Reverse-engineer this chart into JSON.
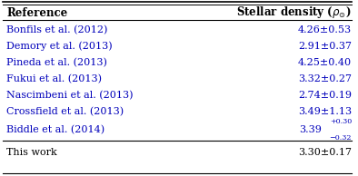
{
  "col1_header": "Reference",
  "col2_header": "Stellar density ($\\rho_{\\odot}$)",
  "rows": [
    {
      "ref": "Bonfils et al. (2012)",
      "val": "4.26±0.53",
      "color": "#0000bb"
    },
    {
      "ref": "Demory et al. (2013)",
      "val": "2.91±0.37",
      "color": "#0000bb"
    },
    {
      "ref": "Pineda et al. (2013)",
      "val": "4.25±0.40",
      "color": "#0000bb"
    },
    {
      "ref": "Fukui et al. (2013)",
      "val": "3.32±0.27",
      "color": "#0000bb"
    },
    {
      "ref": "Nascimbeni et al. (2013)",
      "val": "2.74±0.19",
      "color": "#0000bb"
    },
    {
      "ref": "Crossfield et al. (2013)",
      "val": "3.49±1.13",
      "color": "#0000bb"
    },
    {
      "ref": "Biddle et al. (2014)",
      "val": "biddle_special",
      "color": "#0000bb"
    },
    {
      "ref": "This work",
      "val": "3.30±0.17",
      "color": "#000000"
    }
  ],
  "biddle_value": "3.39",
  "biddle_plus": "$^{+0.30}_{-0.32}$",
  "biddle_plus_text": "+0.30",
  "biddle_minus_text": "−0.32",
  "bg_color": "#ffffff",
  "line_color": "#000000",
  "fontsize": 8.0,
  "header_fontsize": 8.5,
  "fig_width": 3.94,
  "fig_height": 1.94,
  "dpi": 100
}
